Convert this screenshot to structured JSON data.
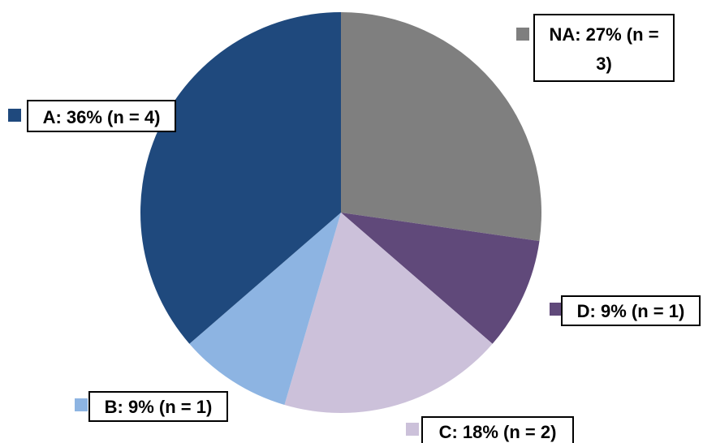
{
  "chart_data": {
    "type": "pie",
    "title": "",
    "start_angle_deg": 0,
    "direction": "clockwise",
    "slices": [
      {
        "name": "NA",
        "percent": 27,
        "n": 3,
        "value": 3,
        "label_lines": [
          "NA: 27% (n =",
          "3)"
        ],
        "color": "#7f7f7f",
        "label_side": "top-right"
      },
      {
        "name": "D",
        "percent": 9,
        "n": 1,
        "value": 1,
        "label_lines": [
          "D: 9% (n = 1)"
        ],
        "color": "#60497a",
        "label_side": "right"
      },
      {
        "name": "C",
        "percent": 18,
        "n": 2,
        "value": 2,
        "label_lines": [
          "C: 18% (n = 2)"
        ],
        "color": "#ccc1da",
        "label_side": "bottom"
      },
      {
        "name": "B",
        "percent": 9,
        "n": 1,
        "value": 1,
        "label_lines": [
          "B: 9% (n = 1)"
        ],
        "color": "#8db4e2",
        "label_side": "bottom-left"
      },
      {
        "name": "A",
        "percent": 36,
        "n": 4,
        "value": 4,
        "label_lines": [
          "A: 36% (n = 4)"
        ],
        "color": "#1f497d",
        "label_side": "left"
      }
    ],
    "legend": "none",
    "grid": false
  }
}
